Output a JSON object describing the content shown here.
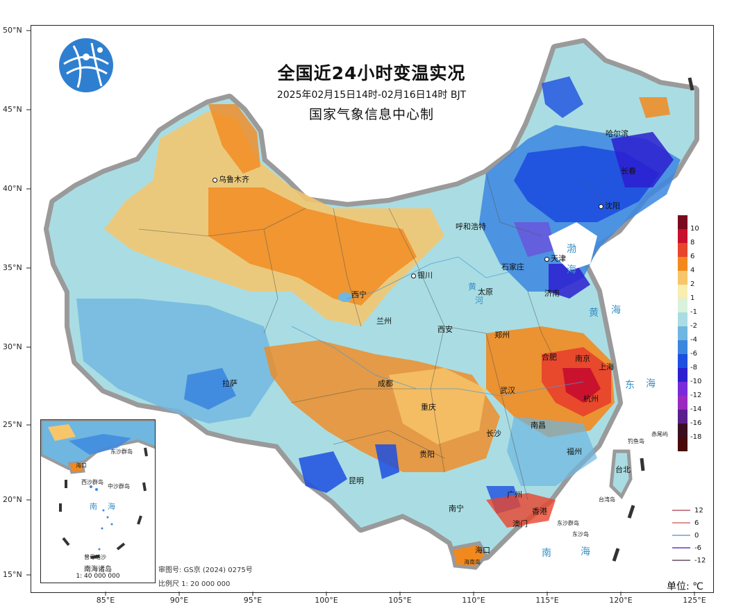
{
  "title": "全国近24小时变温实况",
  "subtitle": "2025年02月15日14时-02月16日14时  BJT",
  "producer": "国家气象信息中心制",
  "latitude_labels": [
    "50°N",
    "45°N",
    "40°N",
    "35°N",
    "30°N",
    "25°N",
    "20°N",
    "15°N"
  ],
  "longitude_labels": [
    "85°E",
    "90°E",
    "95°E",
    "100°E",
    "105°E",
    "110°E",
    "115°E",
    "120°E",
    "125°E"
  ],
  "cities": [
    {
      "name": "乌鲁木齐"
    },
    {
      "name": "呼和浩特"
    },
    {
      "name": "哈尔滨"
    },
    {
      "name": "长春"
    },
    {
      "name": "沈阳"
    },
    {
      "name": "天津"
    },
    {
      "name": "石家庄"
    },
    {
      "name": "银川"
    },
    {
      "name": "太原"
    },
    {
      "name": "济南"
    },
    {
      "name": "西宁"
    },
    {
      "name": "兰州"
    },
    {
      "name": "西安"
    },
    {
      "name": "郑州"
    },
    {
      "name": "合肥"
    },
    {
      "name": "南京"
    },
    {
      "name": "上海"
    },
    {
      "name": "拉萨"
    },
    {
      "name": "成都"
    },
    {
      "name": "武汉"
    },
    {
      "name": "杭州"
    },
    {
      "name": "重庆"
    },
    {
      "name": "长沙"
    },
    {
      "name": "南昌"
    },
    {
      "name": "贵阳"
    },
    {
      "name": "福州"
    },
    {
      "name": "台北"
    },
    {
      "name": "昆明"
    },
    {
      "name": "南宁"
    },
    {
      "name": "广州"
    },
    {
      "name": "香港"
    },
    {
      "name": "澳门"
    },
    {
      "name": "海口"
    }
  ],
  "seas": [
    {
      "name": "渤"
    },
    {
      "name": "海"
    },
    {
      "name": "黄"
    },
    {
      "name": "海"
    },
    {
      "name": "东"
    },
    {
      "name": "海"
    },
    {
      "name": "南"
    },
    {
      "name": "海"
    },
    {
      "name": "黄"
    },
    {
      "name": "河"
    }
  ],
  "islands": [
    {
      "name": "钓鱼岛"
    },
    {
      "name": "赤尾屿"
    },
    {
      "name": "台湾岛"
    },
    {
      "name": "东沙群岛"
    },
    {
      "name": "东沙岛"
    },
    {
      "name": "海南岛"
    }
  ],
  "colorbar": {
    "levels": [
      {
        "label": "10",
        "color": "#7a0b1f"
      },
      {
        "label": "8",
        "color": "#c8102e"
      },
      {
        "label": "6",
        "color": "#e8452c"
      },
      {
        "label": "4",
        "color": "#f2891e"
      },
      {
        "label": "2",
        "color": "#f7c66a"
      },
      {
        "label": "1",
        "color": "#f8eeb0"
      },
      {
        "label": "-1",
        "color": "#d9f2dc"
      },
      {
        "label": "-2",
        "color": "#a9dde3"
      },
      {
        "label": "-4",
        "color": "#6fb7e0"
      },
      {
        "label": "-6",
        "color": "#3c86e0"
      },
      {
        "label": "-8",
        "color": "#1d4fe0"
      },
      {
        "label": "-10",
        "color": "#2c1fd0"
      },
      {
        "label": "-12",
        "color": "#7a2bd9"
      },
      {
        "label": "-14",
        "color": "#9a2ac0"
      },
      {
        "label": "-16",
        "color": "#5a1f8c"
      },
      {
        "label": "-18",
        "color": "#3a1020"
      },
      {
        "label": "",
        "color": "#4a0a0a"
      }
    ]
  },
  "contour_legend": [
    {
      "label": "12",
      "color": "#c98090"
    },
    {
      "label": "6",
      "color": "#e29090"
    },
    {
      "label": "0",
      "color": "#8fb6e0"
    },
    {
      "label": "-6",
      "color": "#8a6ad0"
    },
    {
      "label": "-12",
      "color": "#8a7a8a"
    }
  ],
  "unit": "单位: ℃",
  "approval_number": "审图号: GS京 (2024) 0275号",
  "scale": "比例尺 1: 20 000 000",
  "inset": {
    "title": "南海诸岛",
    "scale": "1: 40 000 000",
    "labels": [
      {
        "name": "海口"
      },
      {
        "name": "西沙群岛"
      },
      {
        "name": "中沙群岛"
      },
      {
        "name": "南"
      },
      {
        "name": "海"
      },
      {
        "name": "东沙群岛"
      },
      {
        "name": "曾母暗沙"
      }
    ]
  }
}
